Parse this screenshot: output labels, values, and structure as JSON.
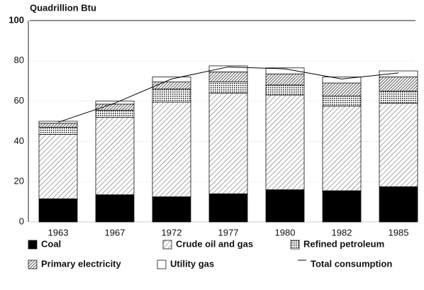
{
  "chart_data": {
    "type": "bar",
    "stacked": true,
    "ylabel": "Quadrillion Btu",
    "categories": [
      "1963",
      "1967",
      "1972",
      "1977",
      "1980",
      "1982",
      "1985"
    ],
    "ylim": [
      0,
      100
    ],
    "yticks": [
      0,
      20,
      40,
      60,
      80,
      100
    ],
    "grid": true,
    "series": [
      {
        "name": "Coal",
        "color": "#000000",
        "pattern": "solid",
        "values": [
          11.5,
          13.5,
          12.5,
          14,
          16,
          15.5,
          17.5
        ]
      },
      {
        "name": "Crude oil and gas",
        "color": "#000000",
        "pattern": "diagonal",
        "values": [
          32,
          38.5,
          47,
          50,
          47,
          42,
          41.5
        ]
      },
      {
        "name": "Refined petroleum",
        "color": "#000000",
        "pattern": "dots",
        "values": [
          3.5,
          3.5,
          6.5,
          5.5,
          5,
          5,
          6
        ]
      },
      {
        "name": "Primary electricity",
        "color": "#000000",
        "pattern": "dense",
        "values": [
          2,
          3,
          3.5,
          5,
          5.5,
          6.5,
          7
        ]
      },
      {
        "name": "Utility gas",
        "color": "#000000",
        "pattern": "none",
        "values": [
          1,
          1.5,
          2.5,
          3,
          3,
          3,
          3
        ]
      },
      {
        "name": "Total consumption",
        "color": "#000000",
        "type": "line",
        "values": [
          49.5,
          59,
          71,
          77,
          76,
          71,
          74
        ]
      }
    ]
  }
}
